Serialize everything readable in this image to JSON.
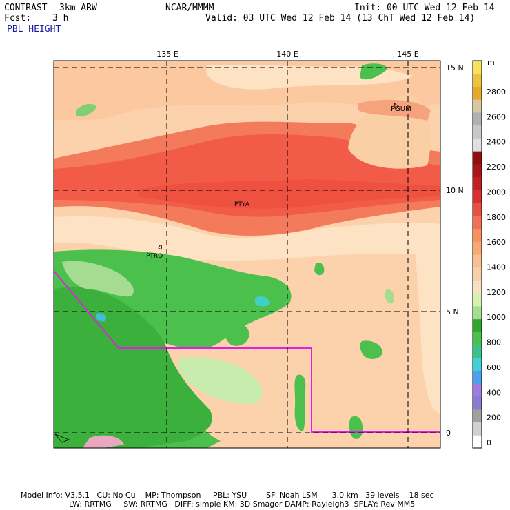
{
  "header": {
    "model": "CONTRAST",
    "resolution": "3km ARW",
    "center": "NCAR/MMMM",
    "fcst_label": "Fcst:",
    "fcst_value": "3 h",
    "init": "Init: 00 UTC Wed 12 Feb 14",
    "valid": "Valid: 03 UTC Wed 12 Feb 14 (13 ChT Wed 12 Feb 14)",
    "field": "PBL HEIGHT"
  },
  "map": {
    "lon_labels": [
      "135 E",
      "140 E",
      "145 E"
    ],
    "lat_labels": [
      "15 N",
      "10 N",
      "5 N",
      "0"
    ],
    "stations": [
      "PGUM",
      "PTYA",
      "PTRO"
    ]
  },
  "colorbar": {
    "unit": "m",
    "ticks": [
      "2800",
      "2600",
      "2400",
      "2200",
      "2000",
      "1800",
      "1600",
      "1400",
      "1200",
      "1000",
      "800",
      "600",
      "400",
      "200",
      "0"
    ],
    "colors": [
      "#ffffff",
      "#d0d0d0",
      "#a0a0a0",
      "#8a7bd0",
      "#a07be0",
      "#4ba0f0",
      "#40d0d8",
      "#3cc08c",
      "#4cc04c",
      "#30a830",
      "#a0e090",
      "#d8f0b0",
      "#f8e0c0",
      "#f8d0a8",
      "#f8c090",
      "#f8a870",
      "#f89060",
      "#f07058",
      "#e85040",
      "#d83030",
      "#c02020",
      "#a81818",
      "#901010",
      "#e0e0e0",
      "#c8c8c8",
      "#b0b0b0",
      "#d8c8a0",
      "#e8a828",
      "#f0c040",
      "#f8e060"
    ]
  },
  "footer": {
    "line1": "Model Info: V3.5.1   CU: No Cu    MP: Thompson     PBL: YSU        SF: Noah LSM      3.0 km   39 levels    18 sec",
    "line2": "LW: RRTMG     SW: RRTMG   DIFF: simple KM: 3D Smagor DAMP: Rayleigh3  SFLAY: Rev MM5"
  }
}
